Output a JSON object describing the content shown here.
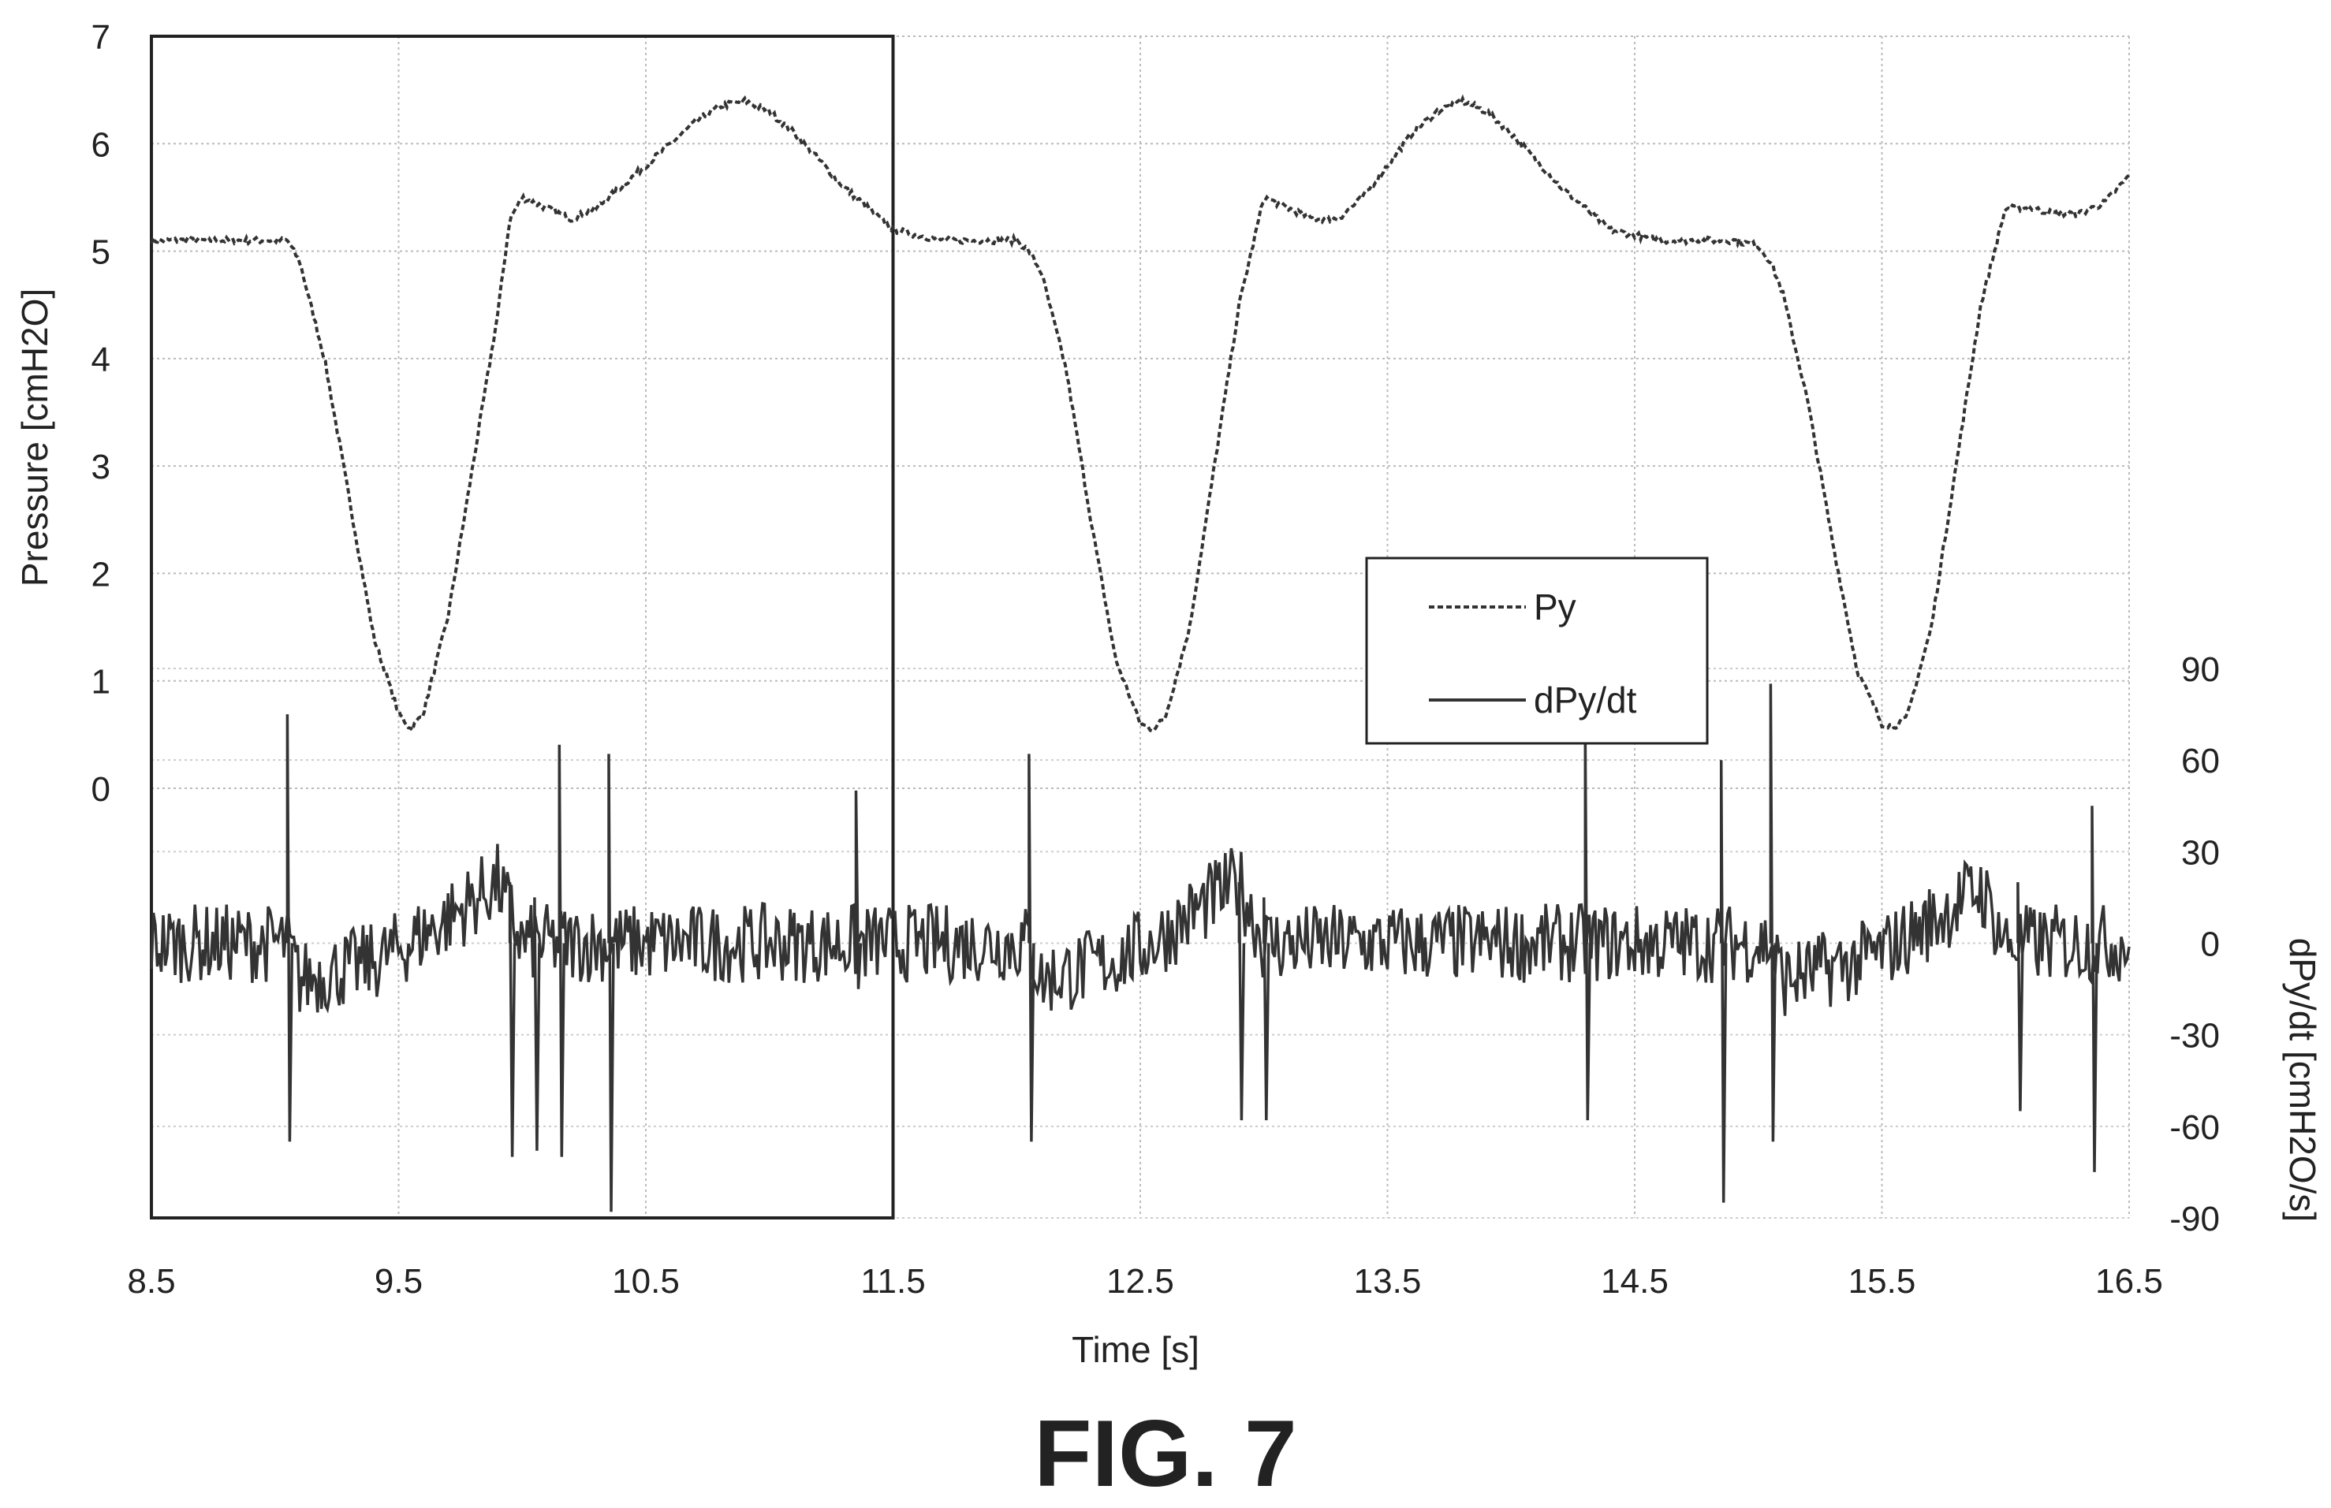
{
  "figure": {
    "caption": "FIG. 7"
  },
  "chart_data": {
    "type": "line",
    "xlabel": "Time [s]",
    "ylabel_left": "Pressure [cmH2O]",
    "ylabel_right": "dPy/dt [cmH2O/s]",
    "xlim": [
      8.5,
      16.5
    ],
    "ylim_left": [
      0,
      7
    ],
    "ylim_right": [
      -90,
      90
    ],
    "x_ticks": [
      "8.5",
      "9.5",
      "10.5",
      "11.5",
      "12.5",
      "13.5",
      "14.5",
      "15.5",
      "16.5"
    ],
    "y_ticks_left": [
      "7",
      "6",
      "5",
      "4",
      "3",
      "2",
      "1",
      "0"
    ],
    "y_ticks_right": [
      "90",
      "60",
      "30",
      "0",
      "-30",
      "-60",
      "-90"
    ],
    "grid": true,
    "legend_position": "center-right",
    "highlight_box": {
      "x_start": 8.5,
      "x_end": 11.5
    },
    "series": [
      {
        "name": "Py",
        "axis": "left",
        "style": "dashed",
        "color": "#333333",
        "x": [
          8.5,
          8.7,
          8.9,
          9.0,
          9.05,
          9.1,
          9.2,
          9.3,
          9.4,
          9.5,
          9.55,
          9.6,
          9.7,
          9.8,
          9.9,
          9.95,
          10.0,
          10.1,
          10.2,
          10.3,
          10.4,
          10.5,
          10.6,
          10.7,
          10.8,
          10.9,
          11.0,
          11.1,
          11.2,
          11.3,
          11.4,
          11.5,
          11.7,
          11.9,
          12.0,
          12.05,
          12.1,
          12.2,
          12.3,
          12.4,
          12.5,
          12.55,
          12.6,
          12.7,
          12.8,
          12.9,
          13.0,
          13.1,
          13.2,
          13.3,
          13.4,
          13.5,
          13.6,
          13.7,
          13.8,
          13.9,
          14.0,
          14.1,
          14.2,
          14.3,
          14.4,
          14.5,
          14.6,
          14.7,
          14.8,
          14.9,
          15.0,
          15.05,
          15.1,
          15.2,
          15.3,
          15.4,
          15.5,
          15.55,
          15.6,
          15.7,
          15.8,
          15.9,
          16.0,
          16.1,
          16.2,
          16.3,
          16.4,
          16.5
        ],
        "values": [
          5.1,
          5.1,
          5.1,
          5.1,
          5.1,
          4.9,
          4.0,
          2.7,
          1.4,
          0.7,
          0.55,
          0.7,
          1.6,
          3.0,
          4.4,
          5.3,
          5.5,
          5.4,
          5.3,
          5.4,
          5.6,
          5.8,
          6.0,
          6.2,
          6.35,
          6.4,
          6.3,
          6.1,
          5.85,
          5.6,
          5.4,
          5.2,
          5.1,
          5.1,
          5.1,
          5.0,
          4.8,
          3.9,
          2.5,
          1.2,
          0.6,
          0.55,
          0.65,
          1.5,
          3.0,
          4.5,
          5.5,
          5.4,
          5.3,
          5.3,
          5.5,
          5.8,
          6.1,
          6.3,
          6.4,
          6.3,
          6.1,
          5.85,
          5.6,
          5.4,
          5.2,
          5.15,
          5.1,
          5.1,
          5.1,
          5.1,
          5.05,
          4.9,
          4.6,
          3.6,
          2.3,
          1.1,
          0.6,
          0.58,
          0.65,
          1.5,
          3.0,
          4.5,
          5.4,
          5.4,
          5.35,
          5.35,
          5.45,
          5.7
        ]
      },
      {
        "name": "dPy/dt",
        "axis": "right",
        "style": "solid",
        "color": "#333333",
        "x": [
          8.5,
          8.7,
          8.9,
          9.0,
          9.05,
          9.1,
          9.2,
          9.3,
          9.4,
          9.5,
          9.6,
          9.7,
          9.8,
          9.9,
          10.0,
          10.1,
          10.2,
          10.3,
          10.4,
          10.5,
          10.7,
          10.9,
          11.1,
          11.3,
          11.5,
          11.7,
          11.9,
          12.0,
          12.05,
          12.1,
          12.2,
          12.3,
          12.4,
          12.5,
          12.6,
          12.7,
          12.8,
          12.9,
          13.0,
          13.1,
          13.3,
          13.5,
          13.7,
          13.9,
          14.1,
          14.3,
          14.5,
          14.7,
          14.9,
          15.0,
          15.05,
          15.1,
          15.2,
          15.3,
          15.4,
          15.5,
          15.6,
          15.7,
          15.8,
          15.9,
          16.0,
          16.1,
          16.3,
          16.5
        ],
        "values": [
          0,
          0,
          0,
          0,
          0,
          -12,
          -10,
          -8,
          -6,
          -2,
          3,
          8,
          14,
          20,
          0,
          0,
          0,
          0,
          0,
          0,
          0,
          0,
          0,
          0,
          0,
          0,
          0,
          0,
          0,
          -12,
          -10,
          -8,
          -5,
          -2,
          3,
          9,
          15,
          20,
          0,
          0,
          0,
          0,
          0,
          0,
          0,
          0,
          0,
          0,
          0,
          0,
          0,
          -12,
          -10,
          -8,
          -6,
          -3,
          2,
          7,
          13,
          18,
          0,
          0,
          0,
          0
        ],
        "spikes": [
          {
            "x": 9.05,
            "max": 75,
            "min": -65
          },
          {
            "x": 9.95,
            "max": 20,
            "min": -70
          },
          {
            "x": 10.05,
            "max": 15,
            "min": -68
          },
          {
            "x": 10.15,
            "max": 65,
            "min": -70
          },
          {
            "x": 10.35,
            "max": 62,
            "min": -88
          },
          {
            "x": 11.35,
            "max": 50,
            "min": -15
          },
          {
            "x": 12.05,
            "max": 62,
            "min": -65
          },
          {
            "x": 12.9,
            "max": 20,
            "min": -58
          },
          {
            "x": 13.0,
            "max": 15,
            "min": -58
          },
          {
            "x": 14.3,
            "max": 68,
            "min": -58
          },
          {
            "x": 14.85,
            "max": 60,
            "min": -85
          },
          {
            "x": 15.05,
            "max": 85,
            "min": -65
          },
          {
            "x": 16.05,
            "max": 20,
            "min": -55
          },
          {
            "x": 16.35,
            "max": 45,
            "min": -75
          }
        ]
      }
    ]
  }
}
